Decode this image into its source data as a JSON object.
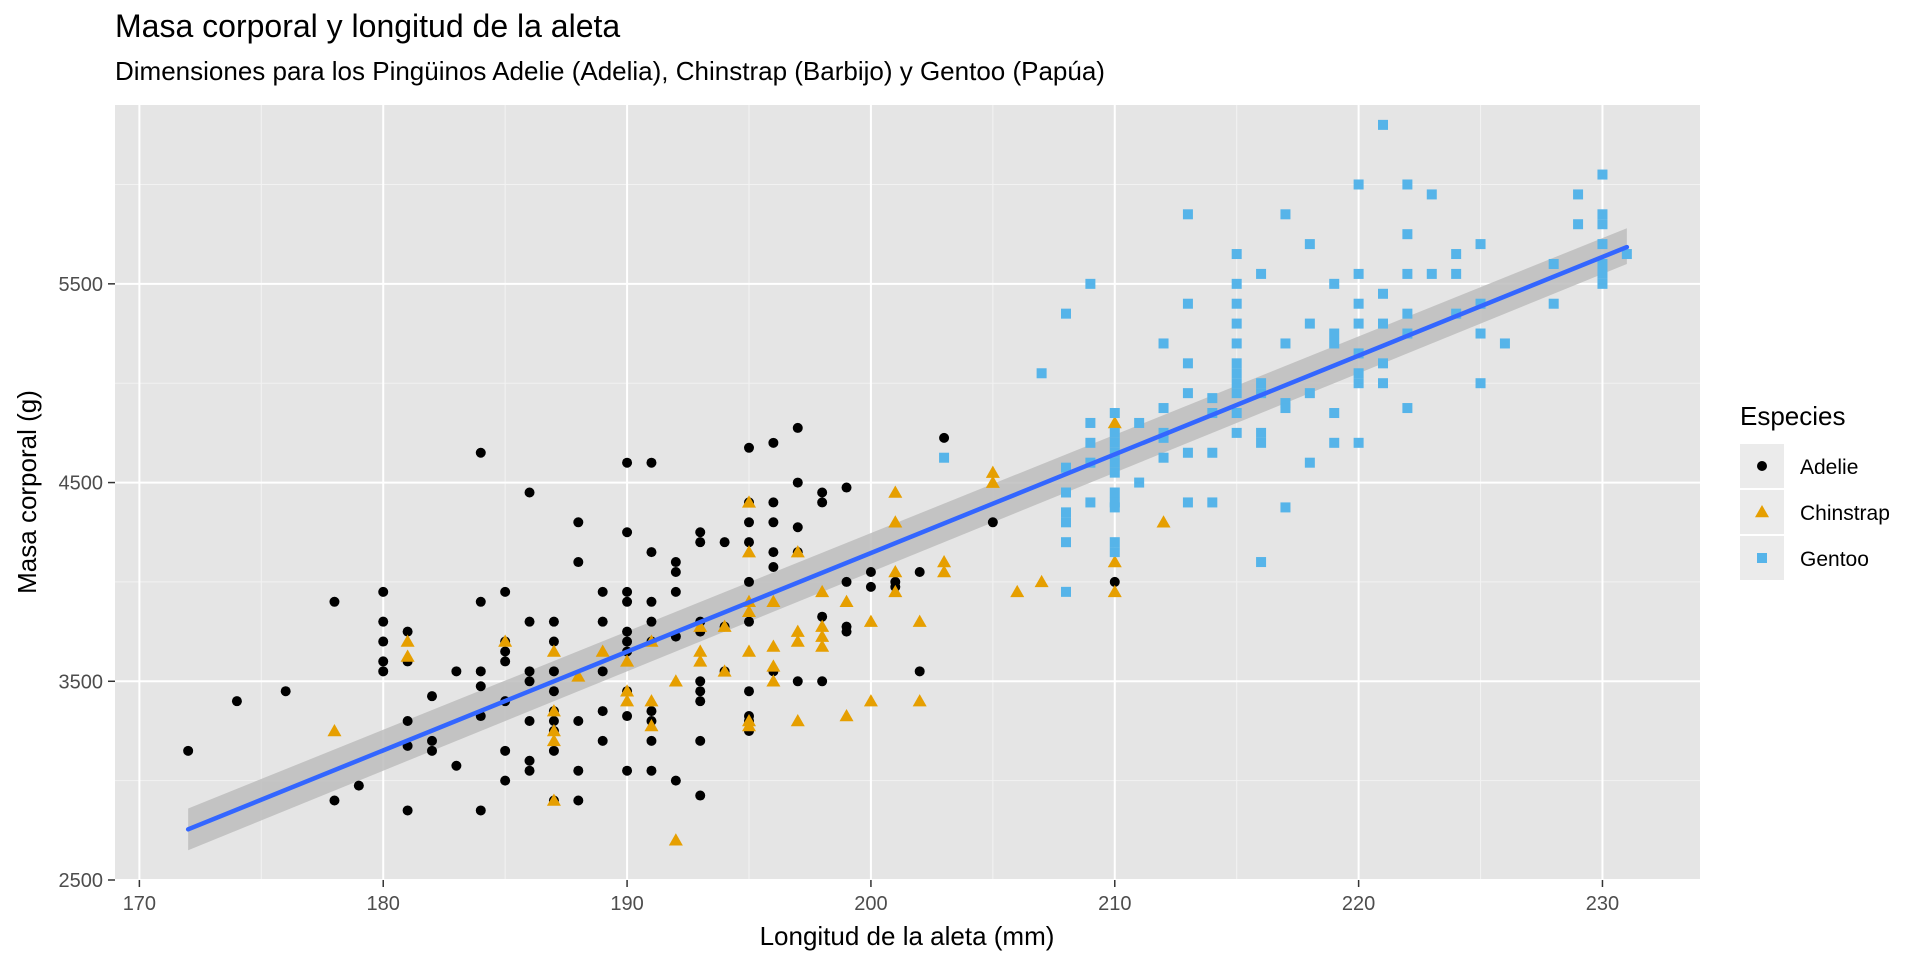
{
  "chart_data": {
    "type": "scatter",
    "title": "Masa corporal y longitud de la aleta",
    "subtitle": "Dimensiones para los Pingüinos Adelie (Adelia), Chinstrap (Barbijo) y Gentoo (Papúa)",
    "xlabel": "Longitud de la aleta (mm)",
    "ylabel": "Masa corporal (g)",
    "xlim": [
      169,
      234
    ],
    "ylim": [
      2500,
      6400
    ],
    "xticks": [
      170,
      180,
      190,
      200,
      210,
      220,
      230
    ],
    "yticks": [
      2500,
      3500,
      4500,
      5500
    ],
    "grid": true,
    "legend_title": "Especies",
    "legend_position": "right",
    "colors": {
      "Adelie": "#000000",
      "Chinstrap": "#E69F00",
      "Gentoo": "#56B4E9",
      "fit": "#3366FF",
      "band": "#bdbdbd",
      "panel": "#e5e5e5"
    },
    "series": [
      {
        "name": "Adelie",
        "shape": "circle",
        "points": [
          [
            172,
            3150
          ],
          [
            174,
            3400
          ],
          [
            176,
            3450
          ],
          [
            178,
            3900
          ],
          [
            178,
            2900
          ],
          [
            179,
            2975
          ],
          [
            180,
            3950
          ],
          [
            180,
            3800
          ],
          [
            180,
            3700
          ],
          [
            180,
            3600
          ],
          [
            180,
            3550
          ],
          [
            181,
            3750
          ],
          [
            181,
            3600
          ],
          [
            181,
            3300
          ],
          [
            181,
            3175
          ],
          [
            181,
            2850
          ],
          [
            182,
            3425
          ],
          [
            182,
            3200
          ],
          [
            182,
            3150
          ],
          [
            183,
            3550
          ],
          [
            183,
            3075
          ],
          [
            184,
            4650
          ],
          [
            184,
            3900
          ],
          [
            184,
            3550
          ],
          [
            184,
            3475
          ],
          [
            184,
            3325
          ],
          [
            184,
            2850
          ],
          [
            185,
            3950
          ],
          [
            185,
            3700
          ],
          [
            185,
            3650
          ],
          [
            185,
            3600
          ],
          [
            185,
            3400
          ],
          [
            185,
            3150
          ],
          [
            185,
            3000
          ],
          [
            186,
            4450
          ],
          [
            186,
            3800
          ],
          [
            186,
            3550
          ],
          [
            186,
            3500
          ],
          [
            186,
            3300
          ],
          [
            186,
            3100
          ],
          [
            186,
            3050
          ],
          [
            187,
            3800
          ],
          [
            187,
            3700
          ],
          [
            187,
            3550
          ],
          [
            187,
            3450
          ],
          [
            187,
            3350
          ],
          [
            187,
            3300
          ],
          [
            187,
            3250
          ],
          [
            187,
            3150
          ],
          [
            187,
            2900
          ],
          [
            188,
            4300
          ],
          [
            188,
            4100
          ],
          [
            188,
            3300
          ],
          [
            188,
            3050
          ],
          [
            188,
            2900
          ],
          [
            189,
            3950
          ],
          [
            189,
            3800
          ],
          [
            189,
            3550
          ],
          [
            189,
            3350
          ],
          [
            189,
            3200
          ],
          [
            190,
            4600
          ],
          [
            190,
            4250
          ],
          [
            190,
            3950
          ],
          [
            190,
            3900
          ],
          [
            190,
            3750
          ],
          [
            190,
            3700
          ],
          [
            190,
            3650
          ],
          [
            190,
            3450
          ],
          [
            190,
            3325
          ],
          [
            190,
            3050
          ],
          [
            191,
            4600
          ],
          [
            191,
            4150
          ],
          [
            191,
            3900
          ],
          [
            191,
            3800
          ],
          [
            191,
            3700
          ],
          [
            191,
            3350
          ],
          [
            191,
            3300
          ],
          [
            191,
            3200
          ],
          [
            191,
            3050
          ],
          [
            192,
            4100
          ],
          [
            192,
            4050
          ],
          [
            192,
            3950
          ],
          [
            192,
            3725
          ],
          [
            192,
            3000
          ],
          [
            193,
            4250
          ],
          [
            193,
            4200
          ],
          [
            193,
            3800
          ],
          [
            193,
            3750
          ],
          [
            193,
            3500
          ],
          [
            193,
            3450
          ],
          [
            193,
            3400
          ],
          [
            193,
            3200
          ],
          [
            193,
            2925
          ],
          [
            194,
            4200
          ],
          [
            194,
            3775
          ],
          [
            194,
            3550
          ],
          [
            195,
            4675
          ],
          [
            195,
            4400
          ],
          [
            195,
            4300
          ],
          [
            195,
            4200
          ],
          [
            195,
            4000
          ],
          [
            195,
            3800
          ],
          [
            195,
            3450
          ],
          [
            195,
            3325
          ],
          [
            195,
            3300
          ],
          [
            195,
            3250
          ],
          [
            196,
            4700
          ],
          [
            196,
            4400
          ],
          [
            196,
            4300
          ],
          [
            196,
            4150
          ],
          [
            196,
            4075
          ],
          [
            196,
            3550
          ],
          [
            197,
            4775
          ],
          [
            197,
            4500
          ],
          [
            197,
            4275
          ],
          [
            197,
            4150
          ],
          [
            197,
            3500
          ],
          [
            198,
            4450
          ],
          [
            198,
            4400
          ],
          [
            198,
            3825
          ],
          [
            198,
            3500
          ],
          [
            199,
            4475
          ],
          [
            199,
            4000
          ],
          [
            199,
            3775
          ],
          [
            199,
            3750
          ],
          [
            200,
            4050
          ],
          [
            200,
            3975
          ],
          [
            201,
            4000
          ],
          [
            201,
            3975
          ],
          [
            202,
            4050
          ],
          [
            202,
            3550
          ],
          [
            203,
            4725
          ],
          [
            205,
            4300
          ],
          [
            210,
            4000
          ]
        ]
      },
      {
        "name": "Chinstrap",
        "shape": "triangle",
        "points": [
          [
            178,
            3250
          ],
          [
            181,
            3700
          ],
          [
            181,
            3625
          ],
          [
            185,
            3700
          ],
          [
            187,
            3650
          ],
          [
            187,
            3350
          ],
          [
            187,
            3250
          ],
          [
            187,
            3200
          ],
          [
            187,
            2900
          ],
          [
            188,
            3525
          ],
          [
            189,
            3650
          ],
          [
            190,
            3600
          ],
          [
            190,
            3450
          ],
          [
            190,
            3400
          ],
          [
            191,
            3700
          ],
          [
            191,
            3400
          ],
          [
            191,
            3275
          ],
          [
            192,
            3500
          ],
          [
            192,
            2700
          ],
          [
            193,
            3775
          ],
          [
            193,
            3650
          ],
          [
            193,
            3600
          ],
          [
            194,
            3775
          ],
          [
            194,
            3550
          ],
          [
            195,
            4400
          ],
          [
            195,
            4150
          ],
          [
            195,
            3900
          ],
          [
            195,
            3850
          ],
          [
            195,
            3650
          ],
          [
            195,
            3300
          ],
          [
            195,
            3275
          ],
          [
            196,
            3900
          ],
          [
            196,
            3675
          ],
          [
            196,
            3575
          ],
          [
            196,
            3500
          ],
          [
            197,
            4150
          ],
          [
            197,
            3750
          ],
          [
            197,
            3700
          ],
          [
            197,
            3300
          ],
          [
            198,
            3950
          ],
          [
            198,
            3775
          ],
          [
            198,
            3725
          ],
          [
            198,
            3675
          ],
          [
            199,
            3900
          ],
          [
            199,
            3325
          ],
          [
            200,
            3800
          ],
          [
            200,
            3400
          ],
          [
            201,
            4450
          ],
          [
            201,
            4300
          ],
          [
            201,
            4050
          ],
          [
            201,
            3950
          ],
          [
            202,
            3800
          ],
          [
            202,
            3400
          ],
          [
            203,
            4100
          ],
          [
            203,
            4050
          ],
          [
            205,
            4550
          ],
          [
            205,
            4500
          ],
          [
            206,
            3950
          ],
          [
            207,
            4000
          ],
          [
            210,
            4800
          ],
          [
            210,
            4100
          ],
          [
            210,
            3950
          ],
          [
            212,
            4300
          ]
        ]
      },
      {
        "name": "Gentoo",
        "shape": "square",
        "points": [
          [
            203,
            4625
          ],
          [
            207,
            5050
          ],
          [
            208,
            5350
          ],
          [
            208,
            4575
          ],
          [
            208,
            4450
          ],
          [
            208,
            4350
          ],
          [
            208,
            4300
          ],
          [
            208,
            4200
          ],
          [
            208,
            3950
          ],
          [
            209,
            5500
          ],
          [
            209,
            4800
          ],
          [
            209,
            4700
          ],
          [
            209,
            4600
          ],
          [
            209,
            4400
          ],
          [
            210,
            4850
          ],
          [
            210,
            4750
          ],
          [
            210,
            4700
          ],
          [
            210,
            4650
          ],
          [
            210,
            4600
          ],
          [
            210,
            4550
          ],
          [
            210,
            4450
          ],
          [
            210,
            4400
          ],
          [
            210,
            4375
          ],
          [
            210,
            4200
          ],
          [
            210,
            4150
          ],
          [
            211,
            4800
          ],
          [
            211,
            4500
          ],
          [
            212,
            5200
          ],
          [
            212,
            4875
          ],
          [
            212,
            4750
          ],
          [
            212,
            4725
          ],
          [
            212,
            4625
          ],
          [
            213,
            5850
          ],
          [
            213,
            5400
          ],
          [
            213,
            5100
          ],
          [
            213,
            4950
          ],
          [
            213,
            4650
          ],
          [
            213,
            4400
          ],
          [
            214,
            4925
          ],
          [
            214,
            4850
          ],
          [
            214,
            4650
          ],
          [
            214,
            4400
          ],
          [
            215,
            5650
          ],
          [
            215,
            5500
          ],
          [
            215,
            5400
          ],
          [
            215,
            5300
          ],
          [
            215,
            5200
          ],
          [
            215,
            5100
          ],
          [
            215,
            5050
          ],
          [
            215,
            5000
          ],
          [
            215,
            4950
          ],
          [
            215,
            4850
          ],
          [
            215,
            4750
          ],
          [
            216,
            5550
          ],
          [
            216,
            5000
          ],
          [
            216,
            4950
          ],
          [
            216,
            4750
          ],
          [
            216,
            4700
          ],
          [
            216,
            4100
          ],
          [
            217,
            5850
          ],
          [
            217,
            5200
          ],
          [
            217,
            4900
          ],
          [
            217,
            4875
          ],
          [
            217,
            4375
          ],
          [
            218,
            5700
          ],
          [
            218,
            5300
          ],
          [
            218,
            4950
          ],
          [
            218,
            4600
          ],
          [
            219,
            5500
          ],
          [
            219,
            5250
          ],
          [
            219,
            5200
          ],
          [
            219,
            4850
          ],
          [
            219,
            4700
          ],
          [
            220,
            6000
          ],
          [
            220,
            5550
          ],
          [
            220,
            5400
          ],
          [
            220,
            5300
          ],
          [
            220,
            5150
          ],
          [
            220,
            5050
          ],
          [
            220,
            5000
          ],
          [
            220,
            4700
          ],
          [
            221,
            6300
          ],
          [
            221,
            5450
          ],
          [
            221,
            5300
          ],
          [
            221,
            5100
          ],
          [
            221,
            5000
          ],
          [
            222,
            6000
          ],
          [
            222,
            5750
          ],
          [
            222,
            5550
          ],
          [
            222,
            5350
          ],
          [
            222,
            5250
          ],
          [
            222,
            4875
          ],
          [
            223,
            5950
          ],
          [
            223,
            5550
          ],
          [
            224,
            5650
          ],
          [
            224,
            5550
          ],
          [
            224,
            5350
          ],
          [
            225,
            5700
          ],
          [
            225,
            5400
          ],
          [
            225,
            5250
          ],
          [
            225,
            5000
          ],
          [
            226,
            5200
          ],
          [
            228,
            5600
          ],
          [
            228,
            5400
          ],
          [
            229,
            5950
          ],
          [
            229,
            5800
          ],
          [
            230,
            6050
          ],
          [
            230,
            5850
          ],
          [
            230,
            5800
          ],
          [
            230,
            5700
          ],
          [
            230,
            5600
          ],
          [
            230,
            5550
          ],
          [
            230,
            5500
          ],
          [
            231,
            5650
          ]
        ]
      }
    ],
    "fit": {
      "method": "linear",
      "x_range": [
        172,
        231
      ],
      "y_at_min": 2755,
      "y_at_max": 5685,
      "band_lower": [
        2650,
        5600
      ],
      "band_upper": [
        2860,
        5780
      ]
    }
  }
}
